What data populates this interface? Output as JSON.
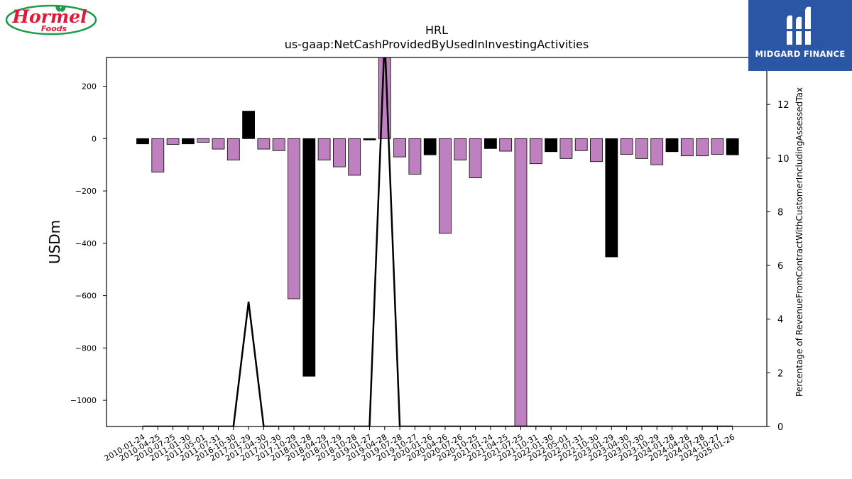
{
  "header": {
    "left_logo": {
      "text": "Hormel",
      "subtext": "Foods",
      "color": "#e31837",
      "ring_color": "#1a9e4a"
    },
    "right_logo": {
      "text": "MIDGARD FINANCE",
      "bg": "#2b56a6"
    }
  },
  "chart_data": {
    "type": "bar",
    "title": "HRL",
    "subtitle": "us-gaap:NetCashProvidedByUsedInInvestingActivities",
    "ylabel": "USDm",
    "y2label": "Percentage of RevenueFromContractWithCustomerIncludingAssessedTax",
    "ylim": [
      -1100,
      310
    ],
    "y2lim": [
      0,
      13.75
    ],
    "yticks": [
      200,
      0,
      -200,
      -400,
      -600,
      -800,
      -1000
    ],
    "ytick_labels": [
      "200",
      "0",
      "−200",
      "−400",
      "−600",
      "−800",
      "−1000"
    ],
    "y2ticks": [
      0,
      2,
      4,
      6,
      8,
      10,
      12
    ],
    "y2tick_labels": [
      "0",
      "2",
      "4",
      "6",
      "8",
      "10",
      "12"
    ],
    "categories": [
      "2010-01-24",
      "2010-04-25",
      "2010-07-25",
      "2011-01-30",
      "2011-05-01",
      "2011-07-31",
      "2016-10-30",
      "2017-01-29",
      "2017-04-30",
      "2017-07-30",
      "2017-10-29",
      "2018-01-28",
      "2018-04-29",
      "2018-07-29",
      "2018-10-28",
      "2019-01-27",
      "2019-04-28",
      "2019-07-28",
      "2019-10-27",
      "2020-01-26",
      "2020-04-26",
      "2020-07-26",
      "2020-10-25",
      "2021-01-24",
      "2021-04-25",
      "2021-07-25",
      "2021-10-31",
      "2022-01-30",
      "2022-05-01",
      "2022-07-31",
      "2022-10-30",
      "2023-01-29",
      "2023-04-30",
      "2023-07-30",
      "2023-10-29",
      "2024-01-28",
      "2024-04-28",
      "2024-07-28",
      "2024-10-27",
      "2025-01-26"
    ],
    "values": [
      -20,
      -128,
      -22,
      -20,
      -14,
      -40,
      -82,
      105,
      -40,
      -46,
      -612,
      -908,
      -82,
      -108,
      -140,
      -5,
      310,
      -70,
      -136,
      -62,
      -362,
      -82,
      -150,
      -38,
      -48,
      -1100,
      -96,
      -50,
      -76,
      -46,
      -88,
      -452,
      -60,
      -76,
      -100,
      -50,
      -66,
      -66,
      -60,
      -62
    ],
    "bar_colors": [
      "#000000",
      "#bf80bf",
      "#bf80bf",
      "#000000",
      "#bf80bf",
      "#bf80bf",
      "#bf80bf",
      "#000000",
      "#bf80bf",
      "#bf80bf",
      "#bf80bf",
      "#000000",
      "#bf80bf",
      "#bf80bf",
      "#bf80bf",
      "#000000",
      "#bf80bf",
      "#bf80bf",
      "#bf80bf",
      "#000000",
      "#bf80bf",
      "#bf80bf",
      "#bf80bf",
      "#000000",
      "#bf80bf",
      "#bf80bf",
      "#bf80bf",
      "#000000",
      "#bf80bf",
      "#bf80bf",
      "#bf80bf",
      "#000000",
      "#bf80bf",
      "#bf80bf",
      "#bf80bf",
      "#000000",
      "#bf80bf",
      "#bf80bf",
      "#bf80bf",
      "#000000"
    ],
    "line_series": {
      "axis": "right",
      "color": "#000000",
      "values": [
        0,
        0,
        0,
        0,
        0,
        0,
        0,
        4.65,
        0,
        0,
        0,
        0,
        0,
        0,
        0,
        0,
        14.5,
        0,
        0,
        0,
        0,
        0,
        0,
        0,
        0,
        0,
        0,
        0,
        0,
        0,
        0,
        0,
        0,
        0,
        0,
        0,
        0,
        0,
        0,
        0
      ]
    }
  }
}
